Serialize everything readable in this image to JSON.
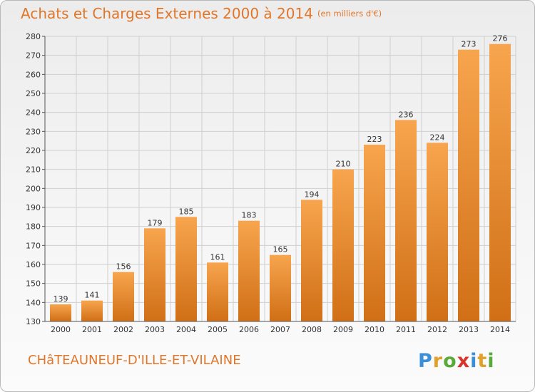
{
  "title": "Achats et Charges Externes 2000 à 2014",
  "unit": "(en milliers d'€)",
  "place": "CHâTEAUNEUF-D'ILLE-ET-VILAINE",
  "logo": {
    "text": "Proxiti",
    "letters": [
      {
        "char": "P",
        "color": "#3a8fd6"
      },
      {
        "char": "r",
        "color": "#e2a02a"
      },
      {
        "char": "o",
        "color": "#5aaa3a"
      },
      {
        "char": "x",
        "color": "#d8342c"
      },
      {
        "char": "i",
        "color": "#3a8fd6"
      },
      {
        "char": "t",
        "color": "#e2a02a"
      },
      {
        "char": "i",
        "color": "#5aaa3a"
      }
    ]
  },
  "colors": {
    "title": "#e0762a",
    "bar_light": "#f7a54e",
    "bar_dark": "#d06f16",
    "grid": "#cfcfcf",
    "text": "#333333"
  },
  "chart_data": {
    "type": "bar",
    "title": "Achats et Charges Externes 2000 à 2014",
    "subtitle": "(en milliers d'€)",
    "xlabel": "",
    "ylabel": "",
    "categories": [
      "2000",
      "2001",
      "2002",
      "2003",
      "2004",
      "2005",
      "2006",
      "2007",
      "2008",
      "2009",
      "2010",
      "2011",
      "2012",
      "2013",
      "2014"
    ],
    "values": [
      139,
      141,
      156,
      179,
      185,
      161,
      183,
      165,
      194,
      210,
      223,
      236,
      224,
      273,
      276
    ],
    "ylim": [
      130,
      280
    ],
    "yticks": [
      130,
      140,
      150,
      160,
      170,
      180,
      190,
      200,
      210,
      220,
      230,
      240,
      250,
      260,
      270,
      280
    ],
    "grid": true,
    "legend": "none"
  }
}
